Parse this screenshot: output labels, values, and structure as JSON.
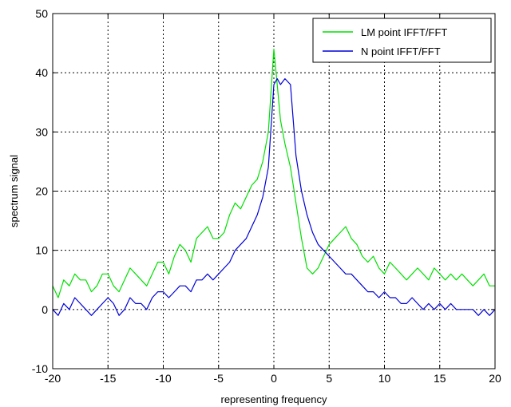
{
  "chart_data": {
    "type": "line",
    "xlabel": "representing frequency",
    "ylabel": "spectrum signal",
    "xlim": [
      -20,
      20
    ],
    "ylim": [
      -10,
      50
    ],
    "xticks": [
      -20,
      -15,
      -10,
      -5,
      0,
      5,
      10,
      15,
      20
    ],
    "xtick_labels": [
      "-20",
      "-15",
      "-10",
      "-5",
      "0",
      "5",
      "10",
      "15",
      "20"
    ],
    "yticks": [
      -10,
      0,
      10,
      20,
      30,
      40,
      50
    ],
    "ytick_labels": [
      "-10",
      "0",
      "10",
      "20",
      "30",
      "40",
      "50"
    ],
    "grid": true,
    "legend_position": "top-right",
    "series": [
      {
        "name": "LM point IFFT/FFT",
        "color": "#00e000",
        "x": [
          -20,
          -19.5,
          -19,
          -18.5,
          -18,
          -17.5,
          -17,
          -16.5,
          -16,
          -15.5,
          -15,
          -14.5,
          -14,
          -13.5,
          -13,
          -12.5,
          -12,
          -11.5,
          -11,
          -10.5,
          -10,
          -9.5,
          -9,
          -8.5,
          -8,
          -7.5,
          -7,
          -6.5,
          -6,
          -5.5,
          -5,
          -4.5,
          -4,
          -3.5,
          -3,
          -2.5,
          -2,
          -1.5,
          -1,
          -0.5,
          0,
          0.3,
          0.6,
          1,
          1.5,
          2,
          2.5,
          3,
          3.5,
          4,
          4.5,
          5,
          5.5,
          6,
          6.5,
          7,
          7.5,
          8,
          8.5,
          9,
          9.5,
          10,
          10.5,
          11,
          11.5,
          12,
          12.5,
          13,
          13.5,
          14,
          14.5,
          15,
          15.5,
          16,
          16.5,
          17,
          17.5,
          18,
          18.5,
          19,
          19.5,
          20
        ],
        "y": [
          4,
          2,
          5,
          4,
          6,
          5,
          5,
          3,
          4,
          6,
          6,
          4,
          3,
          5,
          7,
          6,
          5,
          4,
          6,
          8,
          8,
          6,
          9,
          11,
          10,
          8,
          12,
          13,
          14,
          12,
          12,
          13,
          16,
          18,
          17,
          19,
          21,
          22,
          25,
          30,
          44,
          38,
          32,
          28,
          24,
          18,
          12,
          7,
          6,
          7,
          9,
          11,
          12,
          13,
          14,
          12,
          11,
          9,
          8,
          9,
          7,
          6,
          8,
          7,
          6,
          5,
          6,
          7,
          6,
          5,
          7,
          6,
          5,
          6,
          5,
          6,
          5,
          4,
          5,
          6,
          4,
          4
        ]
      },
      {
        "name": "N point IFFT/FFT",
        "color": "#0000d8",
        "x": [
          -20,
          -19.5,
          -19,
          -18.5,
          -18,
          -17.5,
          -17,
          -16.5,
          -16,
          -15.5,
          -15,
          -14.5,
          -14,
          -13.5,
          -13,
          -12.5,
          -12,
          -11.5,
          -11,
          -10.5,
          -10,
          -9.5,
          -9,
          -8.5,
          -8,
          -7.5,
          -7,
          -6.5,
          -6,
          -5.5,
          -5,
          -4.5,
          -4,
          -3.5,
          -3,
          -2.5,
          -2,
          -1.5,
          -1,
          -0.5,
          0,
          0.3,
          0.6,
          1,
          1.5,
          2,
          2.5,
          3,
          3.5,
          4,
          4.5,
          5,
          5.5,
          6,
          6.5,
          7,
          7.5,
          8,
          8.5,
          9,
          9.5,
          10,
          10.5,
          11,
          11.5,
          12,
          12.5,
          13,
          13.5,
          14,
          14.5,
          15,
          15.5,
          16,
          16.5,
          17,
          17.5,
          18,
          18.5,
          19,
          19.5,
          20
        ],
        "y": [
          0,
          -1,
          1,
          0,
          2,
          1,
          0,
          -1,
          0,
          1,
          2,
          1,
          -1,
          0,
          2,
          1,
          1,
          0,
          2,
          3,
          3,
          2,
          3,
          4,
          4,
          3,
          5,
          5,
          6,
          5,
          6,
          7,
          8,
          10,
          11,
          12,
          14,
          16,
          19,
          24,
          38,
          39,
          38,
          39,
          38,
          26,
          20,
          16,
          13,
          11,
          10,
          9,
          8,
          7,
          6,
          6,
          5,
          4,
          3,
          3,
          2,
          3,
          2,
          2,
          1,
          1,
          2,
          1,
          0,
          1,
          0,
          1,
          0,
          1,
          0,
          0,
          0,
          0,
          -1,
          0,
          -1,
          0
        ]
      }
    ]
  }
}
